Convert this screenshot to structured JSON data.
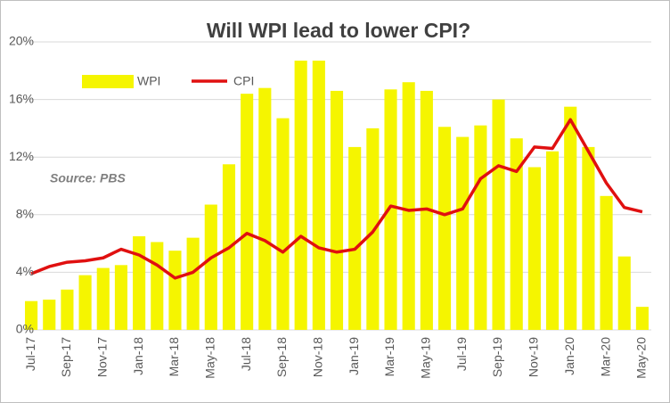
{
  "chart_data": {
    "type": "combo",
    "title": "Will WPI lead to lower CPI?",
    "annotation": "Source: PBS",
    "categories": [
      "Jul-17",
      null,
      "Sep-17",
      null,
      "Nov-17",
      null,
      "Jan-18",
      null,
      "Mar-18",
      null,
      "May-18",
      null,
      "Jul-18",
      null,
      "Sep-18",
      null,
      "Nov-18",
      null,
      "Jan-19",
      null,
      "Mar-19",
      null,
      "May-19",
      null,
      "Jul-19",
      null,
      "Sep-19",
      null,
      "Nov-19",
      null,
      "Jan-20",
      null,
      "Mar-20",
      null,
      "May-20"
    ],
    "series": [
      {
        "name": "WPI",
        "type": "bar",
        "color": "#f5f500",
        "values": [
          2.0,
          2.1,
          2.8,
          3.8,
          4.3,
          4.5,
          6.5,
          6.1,
          5.5,
          6.4,
          8.7,
          11.5,
          16.4,
          16.8,
          14.7,
          18.7,
          18.7,
          16.6,
          12.7,
          14.0,
          16.7,
          17.2,
          16.6,
          14.1,
          13.4,
          14.2,
          16.0,
          13.3,
          11.3,
          12.4,
          15.5,
          12.7,
          9.3,
          5.1,
          1.6
        ]
      },
      {
        "name": "CPI",
        "type": "line",
        "color": "#e01010",
        "values": [
          3.9,
          4.4,
          4.7,
          4.8,
          5.0,
          5.6,
          5.2,
          4.5,
          3.6,
          4.0,
          5.0,
          5.7,
          6.7,
          6.2,
          5.4,
          6.5,
          5.7,
          5.4,
          5.6,
          6.8,
          8.6,
          8.3,
          8.4,
          8.0,
          8.4,
          10.5,
          11.4,
          11.0,
          12.7,
          12.6,
          14.6,
          12.4,
          10.2,
          8.5,
          8.2
        ]
      }
    ],
    "ylim": [
      0,
      20
    ],
    "yticks": [
      {
        "value": 0,
        "label": "0%"
      },
      {
        "value": 4,
        "label": "4%"
      },
      {
        "value": 8,
        "label": "8%"
      },
      {
        "value": 12,
        "label": "12%"
      },
      {
        "value": 16,
        "label": "16%"
      },
      {
        "value": 20,
        "label": "20%"
      }
    ],
    "grid": true
  }
}
